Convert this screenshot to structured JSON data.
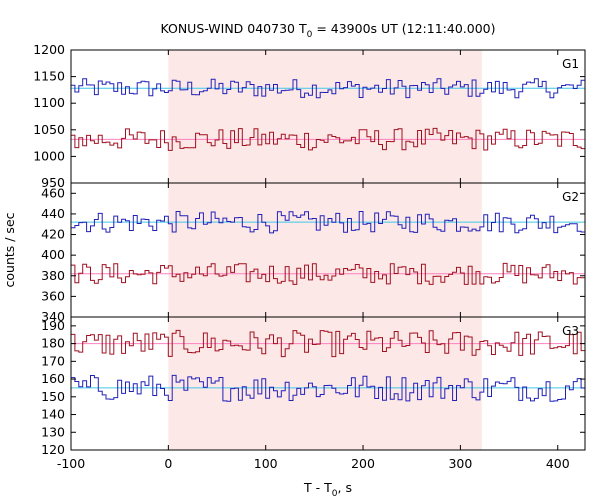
{
  "chart_data": {
    "type": "line",
    "title": {
      "prefix": "KONUS-WIND 040730 T",
      "sub": "0",
      "suffix": " = 43900s UT (12:11:40.000)"
    },
    "xlabel": {
      "prefix": "T - T",
      "sub": "0",
      "suffix": ", s"
    },
    "ylabel": "counts / sec",
    "xlim": [
      -100,
      428
    ],
    "xticks": [
      -100,
      0,
      100,
      200,
      300,
      400
    ],
    "shaded_interval": [
      0,
      322
    ],
    "colors": {
      "high_series": "#a01020",
      "low_series": "#2020b8",
      "high_mean": "#ff80c0",
      "low_mean": "#40c8e8",
      "shade": "#fde8e8"
    },
    "panels": [
      {
        "label": "G1",
        "ylim": [
          950,
          1200
        ],
        "yticks": [
          950,
          1000,
          1050,
          1100,
          1150,
          1200
        ],
        "series": [
          {
            "mean": 1128,
            "amplitude": 12
          },
          {
            "mean": 1032,
            "amplitude": 14
          }
        ]
      },
      {
        "label": "G2",
        "ylim": [
          340,
          470
        ],
        "yticks": [
          340,
          360,
          380,
          400,
          420,
          440,
          460
        ],
        "series": [
          {
            "mean": 432,
            "amplitude": 7
          },
          {
            "mean": 382,
            "amplitude": 7
          }
        ]
      },
      {
        "label": "G3",
        "ylim": [
          120,
          195
        ],
        "yticks": [
          120,
          130,
          140,
          150,
          160,
          170,
          180,
          190
        ],
        "series": [
          {
            "mean": 180,
            "amplitude": 5
          },
          {
            "mean": 155,
            "amplitude": 5
          }
        ]
      }
    ]
  }
}
